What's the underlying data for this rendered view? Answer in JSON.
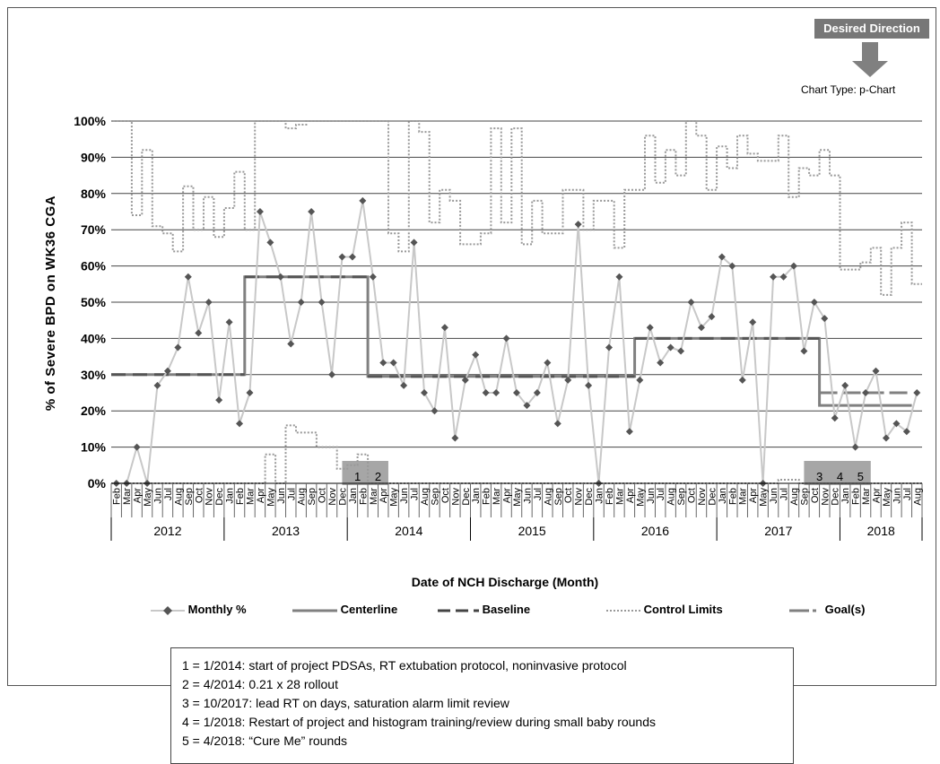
{
  "desired_direction_label": "Desired Direction",
  "chart_type_label": "Chart Type: p-Chart",
  "legend": [
    {
      "key": "monthly",
      "label": "Monthly %"
    },
    {
      "key": "centerline",
      "label": "Centerline"
    },
    {
      "key": "baseline",
      "label": "Baseline"
    },
    {
      "key": "control",
      "label": "Control Limits"
    },
    {
      "key": "goal",
      "label": "Goal(s)"
    }
  ],
  "notes": [
    "1 = 1/2014: start of project PDSAs, RT extubation protocol,  noninvasive protocol",
    "2 = 4/2014: 0.21 x 28 rollout",
    "3 = 10/2017:  lead RT on days, saturation alarm limit review",
    "4 = 1/2018: Restart of project and histogram training/review during small baby rounds",
    "5 = 4/2018: “Cure Me” rounds"
  ],
  "colors": {
    "monthly_line": "#c8c8c8",
    "monthly_marker": "#555555",
    "centerline": "#808080",
    "baseline": "#555555",
    "control": "#999999",
    "goal": "#808080",
    "annotation_box": "#a6a6a6",
    "desired_box": "#777777"
  },
  "chart_data": {
    "type": "line",
    "ylabel": "% of Severe BPD on WK36 CGA",
    "xlabel": "Date of NCH Discharge (Month)",
    "ylim": [
      0,
      100
    ],
    "yticks": [
      "0%",
      "10%",
      "20%",
      "30%",
      "40%",
      "50%",
      "60%",
      "70%",
      "80%",
      "90%",
      "100%"
    ],
    "grid": "horizontal",
    "months": [
      "Feb",
      "Mar",
      "Apr",
      "May",
      "Jun",
      "Jul",
      "Aug",
      "Sep",
      "Oct",
      "Nov",
      "Dec",
      "Jan",
      "Feb",
      "Mar",
      "Apr",
      "May",
      "Jun",
      "Jul",
      "Aug",
      "Sep",
      "Oct",
      "Nov",
      "Dec",
      "Jan",
      "Feb",
      "Mar",
      "Apr",
      "May",
      "Jun",
      "Jul",
      "Aug",
      "Sep",
      "Oct",
      "Nov",
      "Dec",
      "Jan",
      "Feb",
      "Mar",
      "Apr",
      "May",
      "Jun",
      "Jul",
      "Aug",
      "Sep",
      "Oct",
      "Nov",
      "Dec",
      "Jan",
      "Feb",
      "Mar",
      "Apr",
      "May",
      "Jun",
      "Jul",
      "Aug",
      "Sep",
      "Oct",
      "Nov",
      "Dec",
      "Jan",
      "Feb",
      "Mar",
      "Apr",
      "May",
      "Jun",
      "Jul",
      "Aug",
      "Sep",
      "Oct",
      "Nov",
      "Dec",
      "Jan",
      "Feb",
      "Mar",
      "Apr",
      "May",
      "Jun",
      "Jul",
      "Aug"
    ],
    "years": [
      {
        "label": "2012",
        "count": 11
      },
      {
        "label": "2013",
        "count": 12
      },
      {
        "label": "2014",
        "count": 12
      },
      {
        "label": "2015",
        "count": 12
      },
      {
        "label": "2016",
        "count": 12
      },
      {
        "label": "2017",
        "count": 12
      },
      {
        "label": "2018",
        "count": 8
      }
    ],
    "monthly": [
      0,
      0,
      10,
      0,
      27,
      31,
      37.5,
      57,
      41.5,
      50,
      23,
      44.5,
      16.5,
      25,
      75,
      66.5,
      57,
      38.5,
      50,
      75,
      50,
      30,
      62.5,
      62.5,
      78,
      57,
      33.3,
      33.3,
      27,
      66.5,
      25,
      20,
      43,
      12.5,
      28.5,
      35.5,
      25,
      25,
      40,
      25,
      21.5,
      25,
      33.3,
      16.5,
      28.5,
      71.5,
      27,
      0,
      37.5,
      57,
      14.3,
      28.5,
      43,
      33.3,
      37.5,
      36.5,
      50,
      43,
      46,
      62.5,
      60,
      28.5,
      44.5,
      0,
      57,
      57,
      60,
      36.5,
      50,
      45.5,
      18,
      27,
      10,
      25,
      31,
      12.5,
      16.5,
      14.3,
      25
    ],
    "centerline": [
      {
        "from": 0,
        "to": 13,
        "value": 30
      },
      {
        "from": 13,
        "to": 25,
        "value": 57
      },
      {
        "from": 25,
        "to": 51,
        "value": 29.5
      },
      {
        "from": 51,
        "to": 69,
        "value": 40
      },
      {
        "from": 69,
        "to": 78,
        "value": 21.5
      }
    ],
    "baseline": [
      {
        "from": 0,
        "to": 13,
        "value": 30
      },
      {
        "from": 13,
        "to": 25,
        "value": 57
      },
      {
        "from": 25,
        "to": 51,
        "value": 29.5
      },
      {
        "from": 51,
        "to": 69,
        "value": 40
      }
    ],
    "goal": [
      {
        "from": 69,
        "to": 78,
        "value": 25
      }
    ],
    "ucl": [
      100,
      100,
      74,
      92,
      71,
      69,
      64,
      82,
      70,
      79,
      68,
      76,
      86,
      70,
      100,
      100,
      100,
      98,
      99,
      100,
      100,
      100,
      100,
      100,
      100,
      100,
      100,
      69,
      64,
      100,
      97,
      72,
      81,
      78,
      66,
      66,
      69,
      98,
      72,
      98,
      66,
      78,
      69,
      69,
      81,
      81,
      70,
      78,
      78,
      65,
      81,
      81,
      96,
      83,
      92,
      85,
      100,
      96,
      81,
      93,
      87,
      96,
      91,
      89,
      89,
      96,
      79,
      87,
      85,
      92,
      85,
      59,
      59,
      61,
      65,
      52,
      65,
      72,
      55
    ],
    "lcl": [
      0,
      0,
      0,
      0,
      0,
      0,
      0,
      0,
      0,
      0,
      0,
      0,
      0,
      0,
      0,
      8,
      0,
      16,
      14,
      14,
      10,
      10,
      4,
      5,
      8,
      0,
      0,
      0,
      0,
      0,
      0,
      0,
      0,
      0,
      0,
      0,
      0,
      0,
      0,
      0,
      0,
      0,
      0,
      0,
      0,
      0,
      0,
      0,
      0,
      0,
      0,
      0,
      0,
      0,
      0,
      0,
      0,
      0,
      0,
      0,
      0,
      0,
      0,
      0,
      0,
      1,
      1,
      0,
      0,
      0,
      0,
      0,
      0,
      0,
      0,
      0,
      0,
      0,
      0
    ],
    "annotations": [
      {
        "label": "1",
        "index": 23
      },
      {
        "label": "2",
        "index": 25
      },
      {
        "label": "3",
        "index": 68
      },
      {
        "label": "4",
        "index": 70
      },
      {
        "label": "5",
        "index": 72
      }
    ]
  }
}
